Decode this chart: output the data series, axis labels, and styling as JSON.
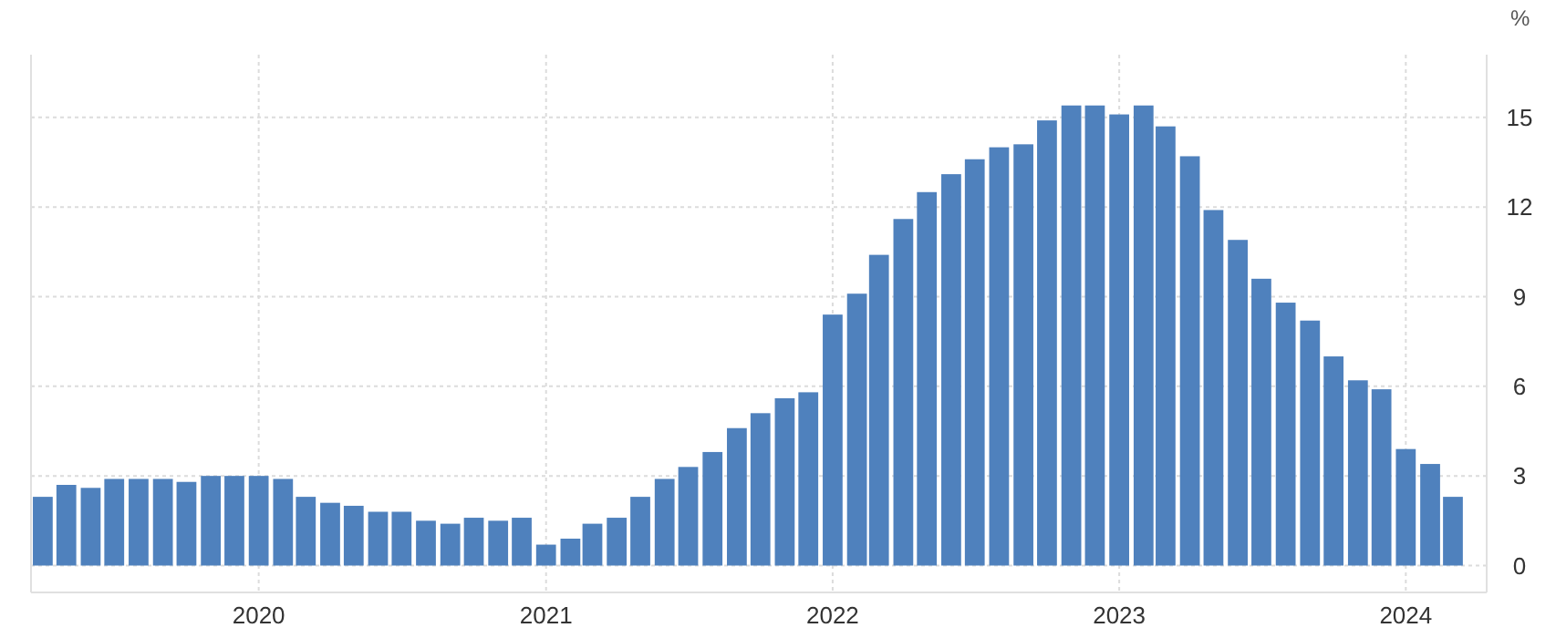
{
  "chart_data": {
    "type": "bar",
    "ylabel": "%",
    "x": [
      "2019-04",
      "2019-05",
      "2019-06",
      "2019-07",
      "2019-08",
      "2019-09",
      "2019-10",
      "2019-11",
      "2019-12",
      "2020-01",
      "2020-02",
      "2020-03",
      "2020-04",
      "2020-05",
      "2020-06",
      "2020-07",
      "2020-08",
      "2020-09",
      "2020-10",
      "2020-11",
      "2020-12",
      "2021-01",
      "2021-02",
      "2021-03",
      "2021-04",
      "2021-05",
      "2021-06",
      "2021-07",
      "2021-08",
      "2021-09",
      "2021-10",
      "2021-11",
      "2021-12",
      "2022-01",
      "2022-02",
      "2022-03",
      "2022-04",
      "2022-05",
      "2022-06",
      "2022-07",
      "2022-08",
      "2022-09",
      "2022-10",
      "2022-11",
      "2022-12",
      "2023-01",
      "2023-02",
      "2023-03",
      "2023-04",
      "2023-05",
      "2023-06",
      "2023-07",
      "2023-08",
      "2023-09",
      "2023-10",
      "2023-11",
      "2023-12",
      "2024-01",
      "2024-02",
      "2024-03"
    ],
    "values": [
      2.3,
      2.7,
      2.6,
      2.9,
      2.9,
      2.9,
      2.8,
      3.0,
      3.0,
      3.0,
      2.9,
      2.3,
      2.1,
      2.0,
      1.8,
      1.8,
      1.5,
      1.4,
      1.6,
      1.5,
      1.6,
      0.7,
      0.9,
      1.4,
      1.6,
      2.3,
      2.9,
      3.3,
      3.8,
      4.6,
      5.1,
      5.6,
      5.8,
      8.4,
      9.1,
      10.4,
      11.6,
      12.5,
      13.1,
      13.6,
      14.0,
      14.1,
      14.9,
      15.4,
      15.4,
      15.1,
      15.4,
      14.7,
      13.7,
      11.9,
      10.9,
      9.6,
      8.8,
      8.2,
      7.0,
      6.2,
      5.9,
      3.9,
      3.4,
      2.3
    ],
    "color": "#4f81bd",
    "xlim": [
      "2019-03-17",
      "2024-04-13"
    ],
    "xticks": [
      {
        "value": "2020-01",
        "label": "2020"
      },
      {
        "value": "2021-01",
        "label": "2021"
      },
      {
        "value": "2022-01",
        "label": "2022"
      },
      {
        "value": "2023-01",
        "label": "2023"
      },
      {
        "value": "2024-01",
        "label": "2024"
      }
    ],
    "ylim": [
      -0.9,
      17.1
    ],
    "yticks": [
      0,
      3,
      6,
      9,
      12,
      15
    ],
    "grid": true
  }
}
